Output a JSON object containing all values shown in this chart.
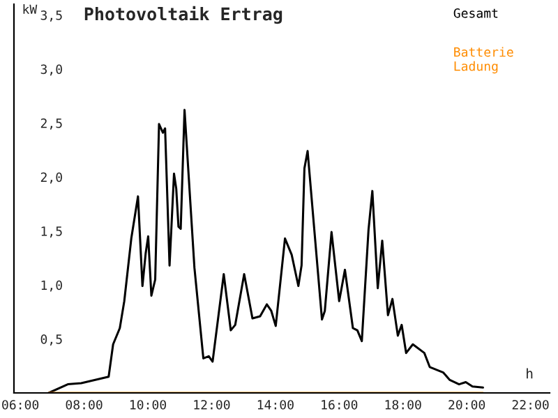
{
  "chart_data": {
    "type": "line",
    "title": "Photovoltaik Ertrag",
    "xlabel": "h",
    "ylabel": "kW",
    "series": [
      {
        "name": "Gesamt",
        "color": "#000000",
        "x": [
          6.89,
          7.49,
          7.91,
          8.77,
          8.91,
          9.12,
          9.26,
          9.48,
          9.69,
          9.83,
          9.93,
          10.01,
          10.11,
          10.23,
          10.35,
          10.47,
          10.54,
          10.68,
          10.82,
          10.89,
          10.96,
          11.03,
          11.15,
          11.46,
          11.74,
          11.91,
          12.03,
          12.38,
          12.6,
          12.74,
          13.02,
          13.28,
          13.52,
          13.73,
          13.87,
          14.01,
          14.3,
          14.51,
          14.72,
          14.82,
          14.91,
          15.01,
          15.22,
          15.46,
          15.55,
          15.76,
          16.0,
          16.18,
          16.43,
          16.57,
          16.71,
          16.92,
          17.04,
          17.21,
          17.35,
          17.53,
          17.67,
          17.84,
          17.96,
          18.1,
          18.31,
          18.67,
          18.84,
          19.26,
          19.47,
          19.76,
          19.97,
          20.18,
          20.51
        ],
        "values": [
          0,
          0.08,
          0.09,
          0.15,
          0.45,
          0.6,
          0.85,
          1.43,
          1.82,
          0.99,
          1.29,
          1.45,
          0.9,
          1.05,
          2.49,
          2.41,
          2.45,
          1.18,
          2.03,
          1.89,
          1.54,
          1.52,
          2.62,
          1.16,
          0.32,
          0.34,
          0.29,
          1.1,
          0.58,
          0.63,
          1.1,
          0.69,
          0.71,
          0.82,
          0.76,
          0.62,
          1.43,
          1.28,
          0.99,
          1.18,
          2.08,
          2.24,
          1.51,
          0.68,
          0.76,
          1.49,
          0.85,
          1.14,
          0.6,
          0.58,
          0.48,
          1.51,
          1.87,
          0.97,
          1.41,
          0.72,
          0.87,
          0.53,
          0.63,
          0.37,
          0.45,
          0.37,
          0.24,
          0.19,
          0.12,
          0.08,
          0.1,
          0.06,
          0.05
        ]
      },
      {
        "name": "Batterie Ladung",
        "color": "#ff8c00",
        "x": [
          6.89,
          20.51
        ],
        "values": [
          0,
          0
        ]
      }
    ],
    "xlim": [
      5.8,
      22.6
    ],
    "xticks": [
      {
        "value": 6,
        "label": "06:00"
      },
      {
        "value": 8,
        "label": "08:00"
      },
      {
        "value": 10,
        "label": "10:00"
      },
      {
        "value": 12,
        "label": "12:00"
      },
      {
        "value": 14,
        "label": "14:00"
      },
      {
        "value": 16,
        "label": "16:00"
      },
      {
        "value": 18,
        "label": "18:00"
      },
      {
        "value": 20,
        "label": "20:00"
      },
      {
        "value": 22,
        "label": "22:00"
      }
    ],
    "ylim": [
      0,
      3.6
    ],
    "yticks": [
      {
        "value": 0.5,
        "label": "0,5"
      },
      {
        "value": 1,
        "label": "1,0"
      },
      {
        "value": 1.5,
        "label": "1,5"
      },
      {
        "value": 2,
        "label": "2,0"
      },
      {
        "value": 2.5,
        "label": "2,5"
      },
      {
        "value": 3,
        "label": "3,0"
      },
      {
        "value": 3.5,
        "label": "3,5"
      }
    ],
    "grid": false,
    "legend": "top right",
    "marker": "none",
    "line_style": "solid"
  }
}
